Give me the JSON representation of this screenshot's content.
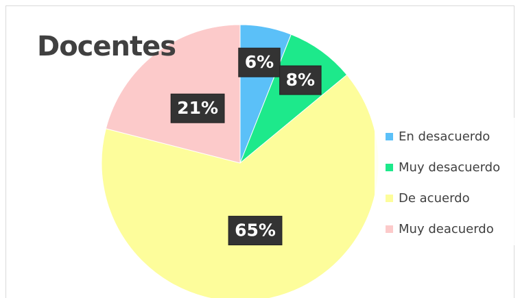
{
  "chart_data": {
    "type": "pie",
    "title": "Docentes",
    "categories": [
      "En desacuerdo",
      "Muy desacuerdo",
      "De acuerdo",
      "Muy deacuerdo"
    ],
    "values": [
      6,
      8,
      65,
      21
    ],
    "value_labels": [
      "6%",
      "8%",
      "65%",
      "21%"
    ],
    "colors": [
      "#5bc0f8",
      "#1de98b",
      "#fdfd9b",
      "#fccaca"
    ],
    "legend": "right"
  }
}
